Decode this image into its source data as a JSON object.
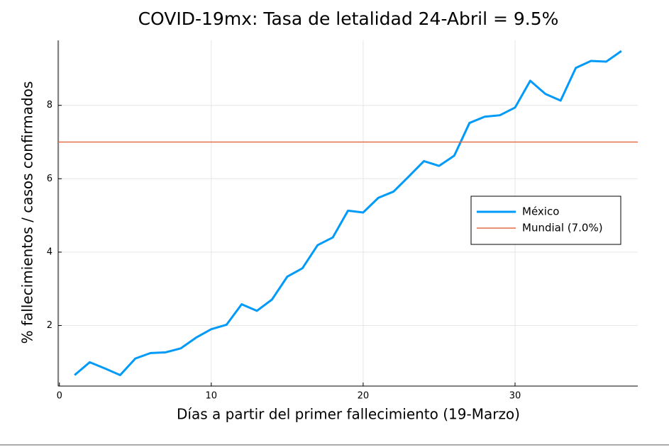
{
  "chart_data": {
    "type": "line",
    "title": "COVID-19mx: Tasa de letalidad 24-Abril = 9.5%",
    "x_label": "Días a partir del primer fallecimiento (19-Marzo)",
    "y_label": "% fallecimientos / casos confirmados",
    "x": [
      1,
      2,
      3,
      4,
      5,
      6,
      7,
      8,
      9,
      10,
      11,
      12,
      13,
      14,
      15,
      16,
      17,
      18,
      19,
      20,
      21,
      22,
      23,
      24,
      25,
      26,
      27,
      28,
      29,
      30,
      31,
      32,
      33,
      34,
      35,
      36,
      37
    ],
    "series": [
      {
        "name": "México",
        "color": "#009af9",
        "values": [
          0.65,
          1.0,
          0.83,
          0.65,
          1.1,
          1.25,
          1.27,
          1.38,
          1.67,
          1.9,
          2.02,
          2.58,
          2.4,
          2.71,
          3.33,
          3.56,
          4.19,
          4.4,
          5.13,
          5.08,
          5.48,
          5.65,
          6.06,
          6.48,
          6.35,
          6.63,
          7.52,
          7.69,
          7.73,
          7.94,
          8.67,
          8.31,
          8.13,
          9.02,
          9.21,
          9.19,
          9.48
        ]
      },
      {
        "name": "Mundial (7.0%)",
        "color": "#e26f46",
        "hline": 7.0
      }
    ],
    "xlim": [
      -0.08,
      38.08
    ],
    "ylim": [
      0.35,
      9.77
    ],
    "xticks": [
      0,
      10,
      20,
      30
    ],
    "yticks": [
      2,
      4,
      6,
      8
    ],
    "grid": true,
    "legend": "right"
  }
}
